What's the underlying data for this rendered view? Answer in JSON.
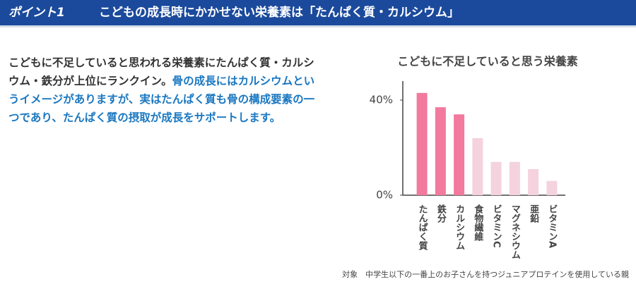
{
  "header": {
    "label": "ポイント1",
    "title": "こどもの成長時にかかせない栄養素は「たんぱく質・カルシウム」"
  },
  "body": {
    "text_parts": [
      "こどもに不足していると思われる栄養素にたんぱく質・カルシウム・鉄分が上位にランクイン。",
      "骨の成長にはカルシウムというイメージがありますが、実はたんぱく質も骨の構成要素の一つであり、たんぱく質の摂取が成長をサポートします。"
    ]
  },
  "chart_data": {
    "type": "bar",
    "title": "こどもに不足していると思う栄養素",
    "categories": [
      "たんぱく質",
      "鉄分",
      "カルシウム",
      "食物繊維",
      "ビタミンC",
      "マグネシウム",
      "亜鉛",
      "ビタミンA"
    ],
    "values": [
      43,
      37,
      34,
      24,
      14,
      14,
      11,
      6
    ],
    "colors": [
      "#f27a9e",
      "#f27a9e",
      "#f27a9e",
      "#f4d3de",
      "#f4d3de",
      "#f4d3de",
      "#f4d3de",
      "#f4d3de"
    ],
    "ylim": [
      0,
      48
    ],
    "yticks": [
      {
        "value": 0,
        "label": "0%"
      },
      {
        "value": 40,
        "label": "40%"
      }
    ]
  },
  "footnote": "対象　中学生以下の一番上のお子さんを持つジュニアプロテインを使用している親"
}
